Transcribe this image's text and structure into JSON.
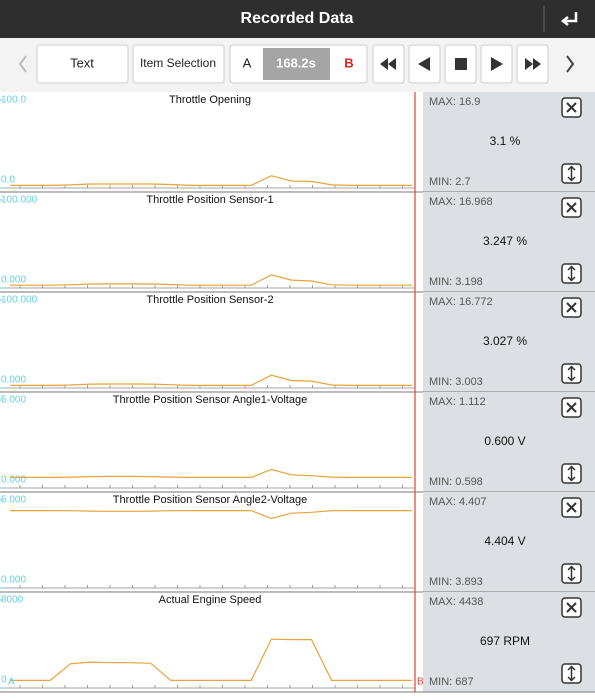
{
  "header": {
    "title": "Recorded Data"
  },
  "toolbar": {
    "text_button": "Text",
    "item_selection": "Item Selection",
    "marker_a": "A",
    "time": "168.2s",
    "marker_b": "B"
  },
  "cursor_labels": {
    "a": "A",
    "b": "B"
  },
  "panels": [
    {
      "title": "Throttle Opening",
      "yticks": [
        {
          "value": 0,
          "label": "0.0"
        },
        {
          "value": 100,
          "label": "100.0"
        }
      ],
      "ylim": [
        0,
        100
      ],
      "max": "MAX: 16.9",
      "current": "3.1 %",
      "min": "MIN: 2.7",
      "color": "#e8a33a",
      "values": [
        3,
        3,
        3,
        3.5,
        4.5,
        4.6,
        4.6,
        4.5,
        4,
        3,
        3,
        3,
        3,
        14,
        8,
        7.5,
        3.5,
        3,
        3,
        3,
        3
      ]
    },
    {
      "title": "Throttle Position Sensor-1",
      "yticks": [
        {
          "value": 0,
          "label": "0.000"
        },
        {
          "value": 100,
          "label": "100.000"
        }
      ],
      "ylim": [
        0,
        100
      ],
      "max": "MAX: 16.968",
      "current": "3.247 %",
      "min": "MIN: 3.198",
      "color": "#e8a33a",
      "values": [
        3.2,
        3.2,
        3.2,
        3.6,
        4.6,
        4.7,
        4.7,
        4.6,
        4,
        3.2,
        3.2,
        3.2,
        3.2,
        15,
        9,
        8,
        3.6,
        3.2,
        3.2,
        3.2,
        3.2
      ]
    },
    {
      "title": "Throttle Position Sensor-2",
      "yticks": [
        {
          "value": 0,
          "label": "0.000"
        },
        {
          "value": 100,
          "label": "100.000"
        }
      ],
      "ylim": [
        0,
        100
      ],
      "max": "MAX: 16.772",
      "current": "3.027 %",
      "min": "MIN: 3.003",
      "color": "#e8a33a",
      "values": [
        3,
        3,
        3,
        3.4,
        4.4,
        4.5,
        4.5,
        4.4,
        3.8,
        3,
        3,
        3,
        3,
        14.5,
        8.5,
        7.8,
        3.4,
        3,
        3,
        3,
        3
      ]
    },
    {
      "title": "Throttle Position Sensor Angle1-Voltage",
      "yticks": [
        {
          "value": 0,
          "label": "0.000"
        },
        {
          "value": 5,
          "label": "5.000"
        }
      ],
      "ylim": [
        0,
        5
      ],
      "max": "MAX: 1.112",
      "current": "0.600 V",
      "min": "MIN: 0.598",
      "color": "#e8a33a",
      "values": [
        0.6,
        0.6,
        0.6,
        0.62,
        0.65,
        0.66,
        0.66,
        0.65,
        0.62,
        0.6,
        0.6,
        0.6,
        0.6,
        1.05,
        0.75,
        0.7,
        0.62,
        0.6,
        0.6,
        0.6,
        0.6
      ]
    },
    {
      "title": "Throttle Position Sensor Angle2-Voltage",
      "yticks": [
        {
          "value": 0,
          "label": "0.000"
        },
        {
          "value": 5,
          "label": "5.000"
        }
      ],
      "ylim": [
        0,
        5
      ],
      "max": "MAX: 4.407",
      "current": "4.404 V",
      "min": "MIN: 3.893",
      "color": "#e8a33a",
      "values": [
        4.4,
        4.4,
        4.4,
        4.39,
        4.37,
        4.36,
        4.36,
        4.37,
        4.39,
        4.4,
        4.4,
        4.4,
        4.4,
        3.95,
        4.25,
        4.3,
        4.39,
        4.4,
        4.4,
        4.4,
        4.4
      ]
    },
    {
      "title": "Actual Engine Speed",
      "yticks": [
        {
          "value": 0,
          "label": "0"
        },
        {
          "value": 8000,
          "label": "8000"
        }
      ],
      "ylim": [
        0,
        8000
      ],
      "max": "MAX: 4438",
      "current": "697 RPM",
      "min": "MIN: 687",
      "color": "#e8a33a",
      "values": [
        687,
        687,
        687,
        2200,
        2350,
        2300,
        2300,
        2250,
        687,
        687,
        687,
        687,
        687,
        4438,
        4400,
        4400,
        687,
        687,
        687,
        687,
        687
      ]
    }
  ]
}
